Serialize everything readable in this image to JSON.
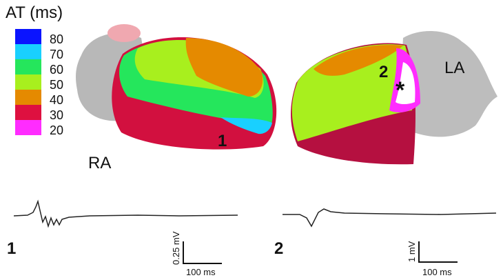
{
  "legend": {
    "title": "AT (ms)",
    "entries": [
      {
        "label": 80,
        "color": "#0a14ff"
      },
      {
        "label": 70,
        "color": "#19d0ff"
      },
      {
        "label": 60,
        "color": "#25e65c"
      },
      {
        "label": 50,
        "color": "#a8ef1e"
      },
      {
        "label": 40,
        "color": "#e58a00"
      },
      {
        "label": 30,
        "color": "#de1040"
      },
      {
        "label": 20,
        "color": "#ff2cff"
      },
      {
        "label": null,
        "color": "#ffffff"
      }
    ]
  },
  "views": [
    {
      "label": "RA",
      "marker": "1"
    },
    {
      "label": "LA",
      "marker": "2",
      "site": "*"
    }
  ],
  "traces": [
    {
      "label": "1",
      "scale_voltage": "0.25 mV",
      "scale_time": "100 ms"
    },
    {
      "label": "2",
      "scale_voltage": "1 mV",
      "scale_time": "100 ms"
    }
  ]
}
